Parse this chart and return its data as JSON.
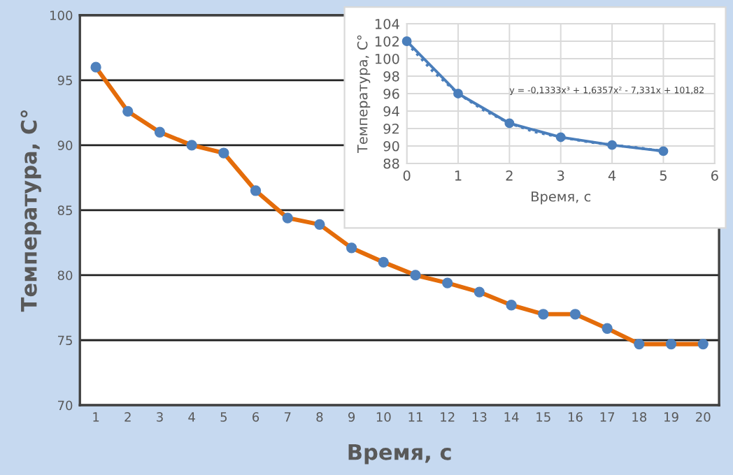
{
  "chart_data": [
    {
      "type": "line",
      "xlabel": "Время, с",
      "ylabel": "Температура, С°",
      "categories": [
        "1",
        "2",
        "3",
        "4",
        "5",
        "6",
        "7",
        "8",
        "9",
        "10",
        "11",
        "12",
        "13",
        "14",
        "15",
        "16",
        "17",
        "18",
        "19",
        "20"
      ],
      "series": [
        {
          "color": "#e46c0a",
          "values": [
            96.0,
            92.6,
            91.0,
            90.0,
            89.4,
            86.5,
            84.4,
            83.9,
            82.1,
            81.0,
            80.0,
            79.4,
            78.7,
            77.7,
            77.0,
            77.0,
            75.9,
            74.7,
            74.7,
            74.7
          ]
        }
      ],
      "ylim": [
        70,
        100
      ],
      "yticks": [
        70,
        75,
        80,
        85,
        90,
        95,
        100
      ],
      "grid": "y",
      "marker": "circle",
      "line_style": "solid",
      "legend": false
    },
    {
      "type": "line",
      "xlabel": "Время, с",
      "ylabel": "Температура, С°",
      "series": [
        {
          "color": "#4a7ebb",
          "x": [
            0,
            1,
            2,
            3,
            4,
            5
          ],
          "values": [
            102.0,
            96.0,
            92.6,
            91.0,
            90.1,
            89.4
          ]
        },
        {
          "color": "#4a7ebb",
          "type": "line",
          "line_style": "dotted",
          "marker": "none",
          "x": [
            0,
            0.5,
            1,
            1.5,
            2,
            2.5,
            3,
            3.5,
            4,
            4.5,
            5
          ],
          "values": [
            101.8,
            98.6,
            96.0,
            94.1,
            92.6,
            91.6,
            91.0,
            90.5,
            90.1,
            89.8,
            89.4
          ]
        }
      ],
      "xlim": [
        0,
        6
      ],
      "xticks": [
        0,
        1,
        2,
        3,
        4,
        5,
        6
      ],
      "ylim": [
        88,
        104
      ],
      "yticks": [
        88,
        90,
        92,
        94,
        96,
        98,
        100,
        102,
        104
      ],
      "grid": true,
      "marker": "circle",
      "line_style": "solid",
      "legend": false,
      "annotations": [
        "y = -0,1333x³ + 1,6357x² - 7,331x + 101,82"
      ]
    }
  ]
}
